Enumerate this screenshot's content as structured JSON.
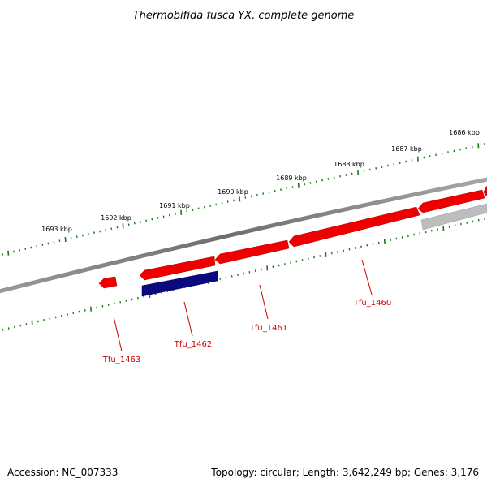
{
  "title": "Thermobifida fusca YX, complete genome",
  "footer": {
    "accession": "Accession: NC_007333",
    "summary": "Topology: circular; Length: 3,642,249 bp; Genes: 3,176"
  },
  "scale_labels": [
    "1693 kbp",
    "1692 kbp",
    "1691 kbp",
    "1690 kbp",
    "1689 kbp",
    "1688 kbp",
    "1687 kbp",
    "1686 kbp"
  ],
  "gene_labels": [
    "Tfu_1463",
    "Tfu_1462",
    "Tfu_1461",
    "Tfu_1460"
  ],
  "colors": {
    "backbone": "#7a7a7a",
    "forward_gene": "#ee0000",
    "reverse_gene": "#0a0a80",
    "other_gene": "#bdbdbd",
    "ticks": "#1a7a1a",
    "gene_label": "#cc0000"
  }
}
